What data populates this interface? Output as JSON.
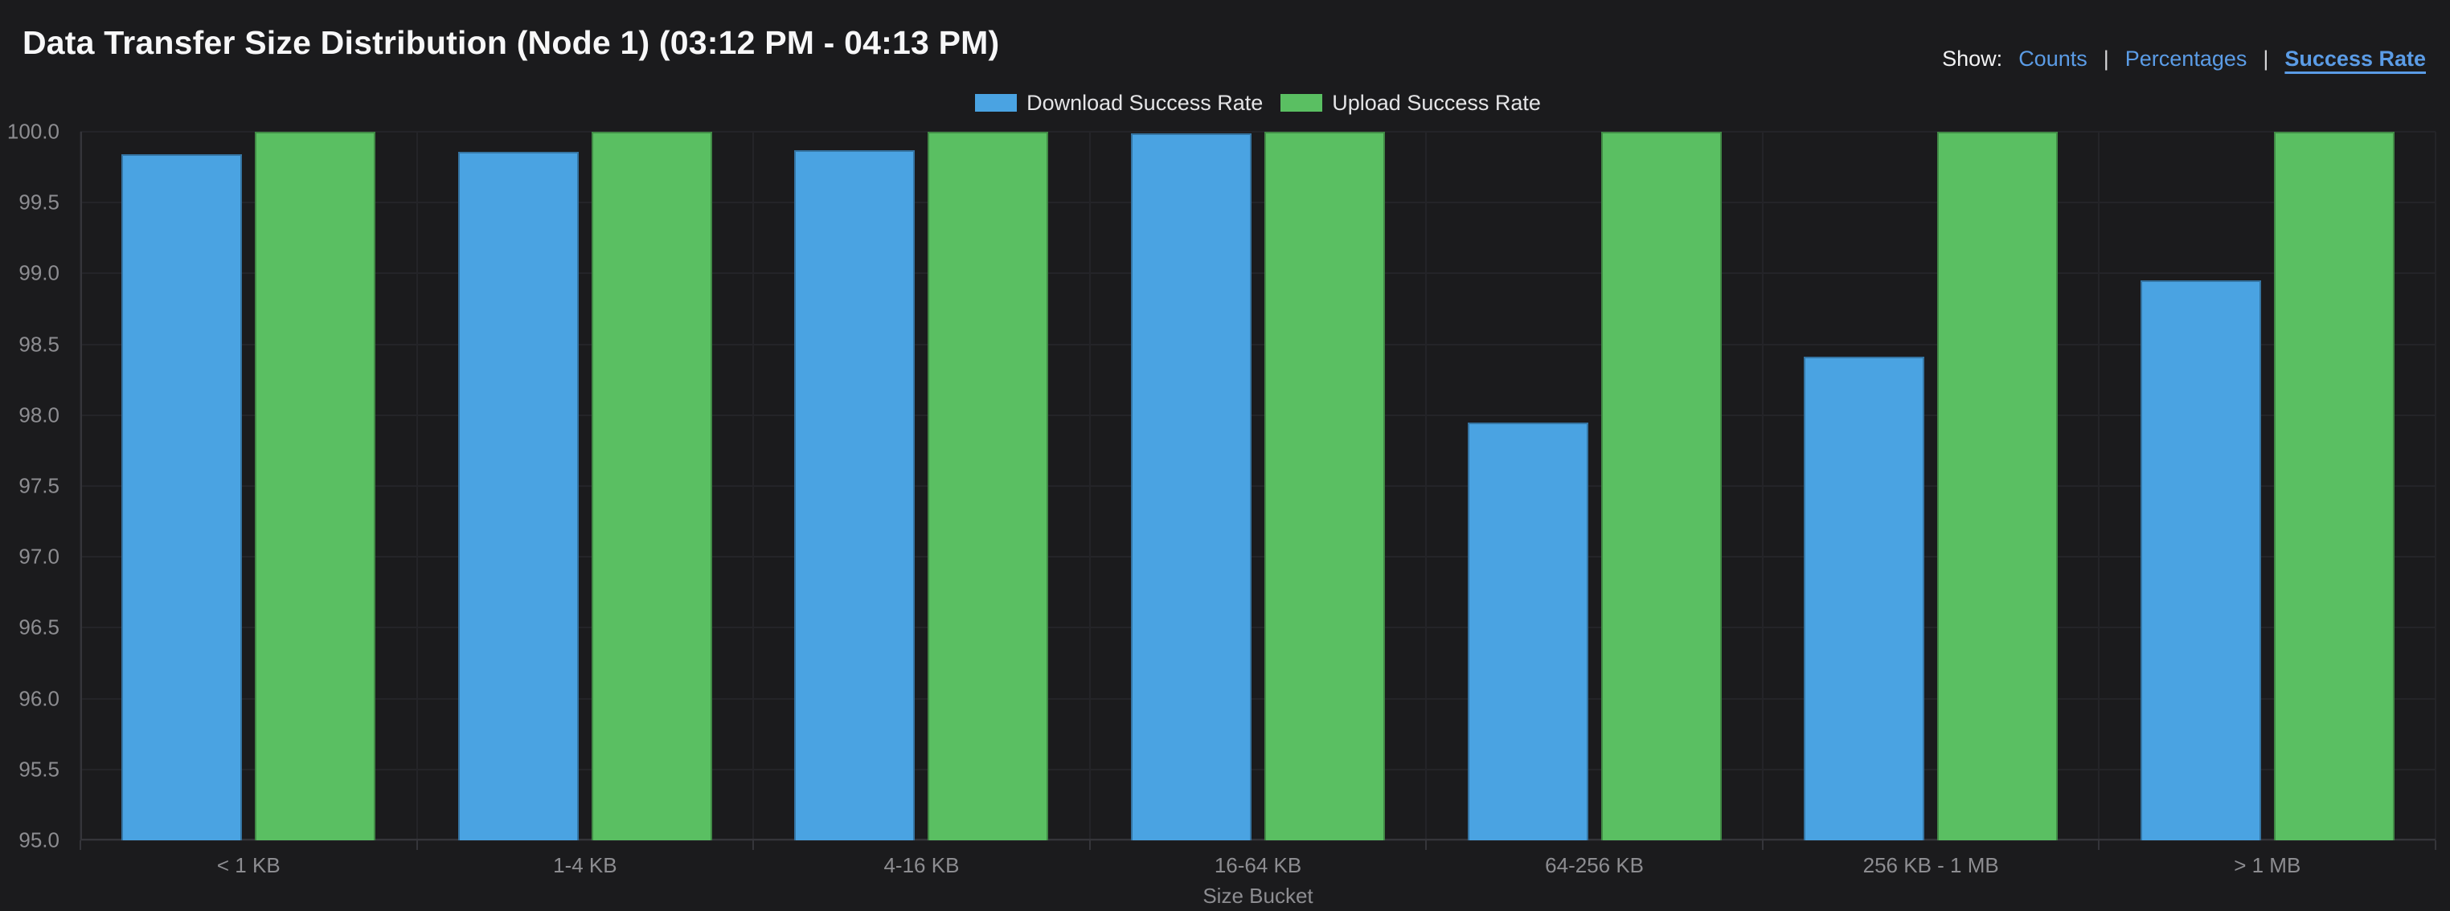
{
  "header": {
    "title": "Data Transfer Size Distribution (Node 1) (03:12 PM - 04:13 PM)",
    "show_label": "Show:",
    "separator": "|",
    "show_options": [
      {
        "label": "Counts",
        "active": false
      },
      {
        "label": "Percentages",
        "active": false
      },
      {
        "label": "Success Rate",
        "active": true
      }
    ]
  },
  "colors": {
    "background": "#1b1b1d",
    "download": "#4aa3e2",
    "upload": "#5abf62",
    "link": "#5b9ce6",
    "grid": "#242428",
    "axis": "#35353a",
    "tick_text": "#8d8d91",
    "legend_text": "#e4e4e6",
    "title_text": "#f7f7f8"
  },
  "chart_data": {
    "type": "bar",
    "title": "Data Transfer Size Distribution (Node 1) (03:12 PM - 04:13 PM)",
    "categories": [
      "< 1 KB",
      "1-4 KB",
      "4-16 KB",
      "16-64 KB",
      "64-256 KB",
      "256 KB - 1 MB",
      "> 1 MB"
    ],
    "series": [
      {
        "name": "Download Success Rate",
        "color": "#4aa3e2",
        "values": [
          99.84,
          99.86,
          99.87,
          99.99,
          97.95,
          98.41,
          98.95
        ]
      },
      {
        "name": "Upload Success Rate",
        "color": "#5abf62",
        "values": [
          100.0,
          100.0,
          100.0,
          100.0,
          100.0,
          100.0,
          100.0
        ]
      }
    ],
    "xlabel": "Size Bucket",
    "ylabel": "",
    "ylim": [
      95.0,
      100.0
    ],
    "ytick_step": 0.5,
    "yticks": [
      95.0,
      95.5,
      96.0,
      96.5,
      97.0,
      97.5,
      98.0,
      98.5,
      99.0,
      99.5,
      100.0
    ],
    "grid": true,
    "legend_position": "top-center"
  }
}
